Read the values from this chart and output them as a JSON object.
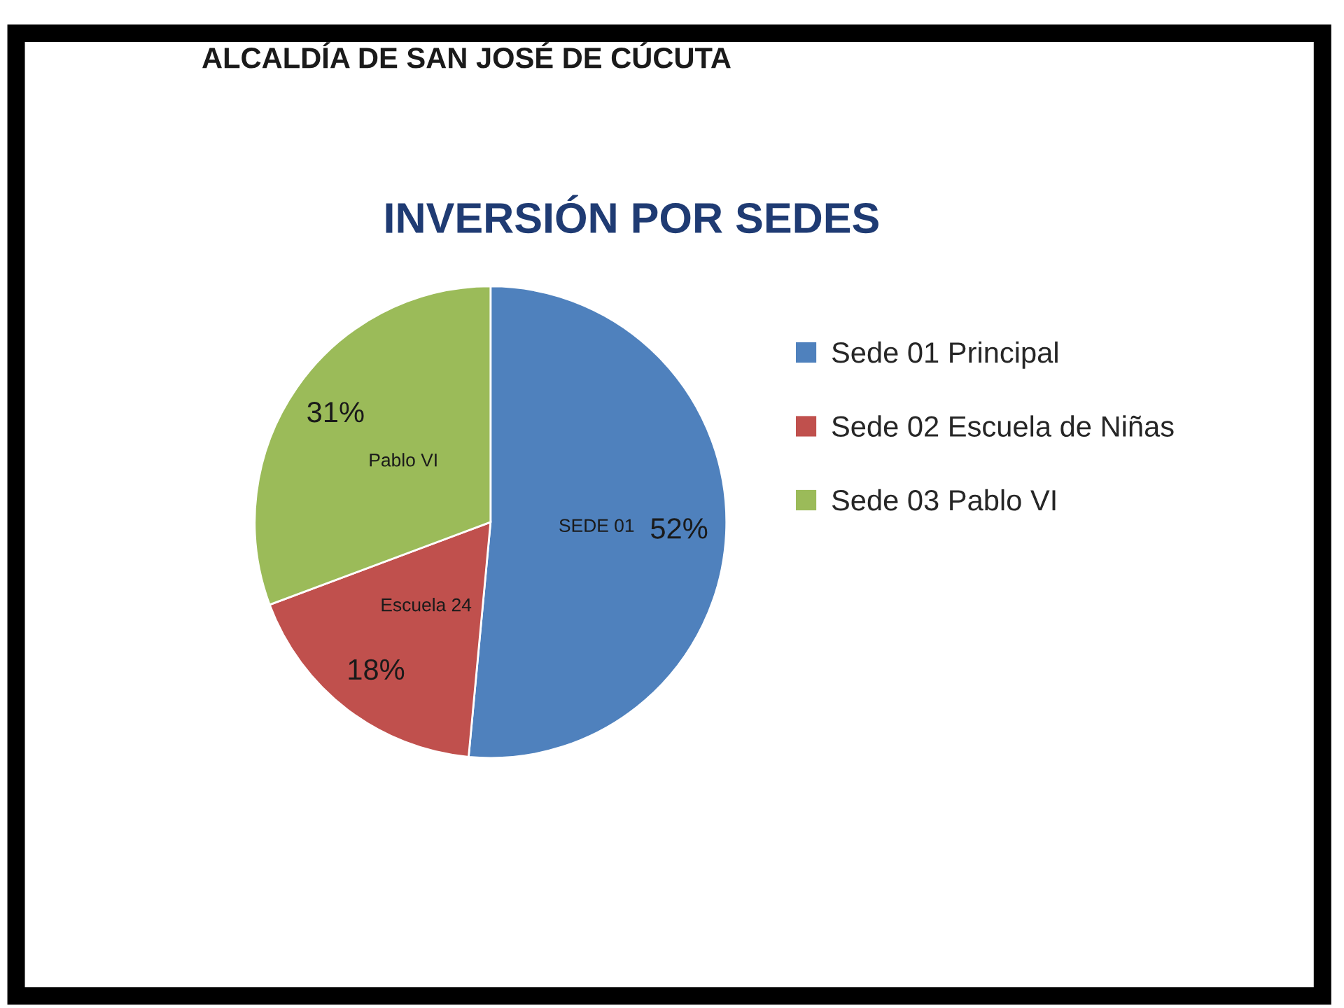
{
  "chart_data": {
    "type": "pie",
    "title": "INVERSIÓN POR SEDES",
    "categories": [
      "Sede 01 Principal",
      "Sede 02 Escuela de Niñas",
      "Sede 03 Pablo VI"
    ],
    "values": [
      52,
      18,
      31
    ],
    "colors": [
      "#4f81bd",
      "#c0504d",
      "#9bbb59"
    ],
    "value_labels": [
      "52%",
      "18%",
      "31%"
    ],
    "annotations": [
      "SEDE 01",
      "Escuela 24",
      "Pablo VI",
      "ALCALDÍA DE SAN JOSÉ DE CÚCUTA"
    ],
    "legend": "right"
  }
}
